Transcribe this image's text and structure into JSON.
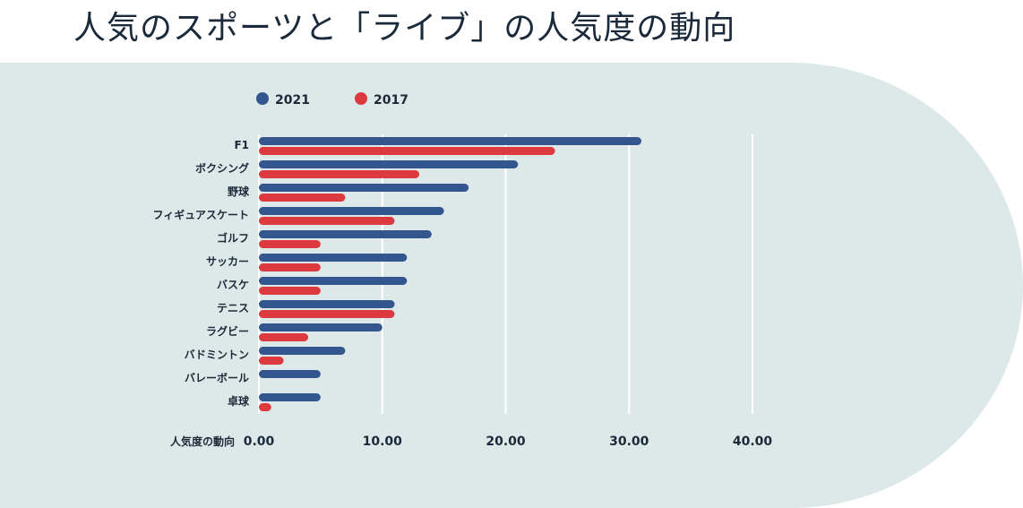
{
  "title": "人気のスポーツと「ライブ」の人気度の動向",
  "chart_data": {
    "type": "bar",
    "orientation": "horizontal",
    "categories": [
      "F1",
      "ボクシング",
      "野球",
      "フィギュアスケート",
      "ゴルフ",
      "サッカー",
      "バスケ",
      "テニス",
      "ラグビー",
      "バドミントン",
      "バレーボール",
      "卓球"
    ],
    "series": [
      {
        "name": "2021",
        "color": "#34568f",
        "values": [
          31,
          21,
          17,
          15,
          14,
          12,
          12,
          11,
          10,
          7,
          5,
          5
        ]
      },
      {
        "name": "2017",
        "color": "#dc3a3f",
        "values": [
          24,
          13,
          7,
          11,
          5,
          5,
          5,
          11,
          4,
          2,
          0,
          1
        ]
      }
    ],
    "xlabel": "人気度の動向",
    "xticks": [
      "0.00",
      "10.00",
      "20.00",
      "30.00",
      "40.00"
    ],
    "xlim": [
      0,
      40
    ],
    "grid": true,
    "legend": "top-left"
  }
}
